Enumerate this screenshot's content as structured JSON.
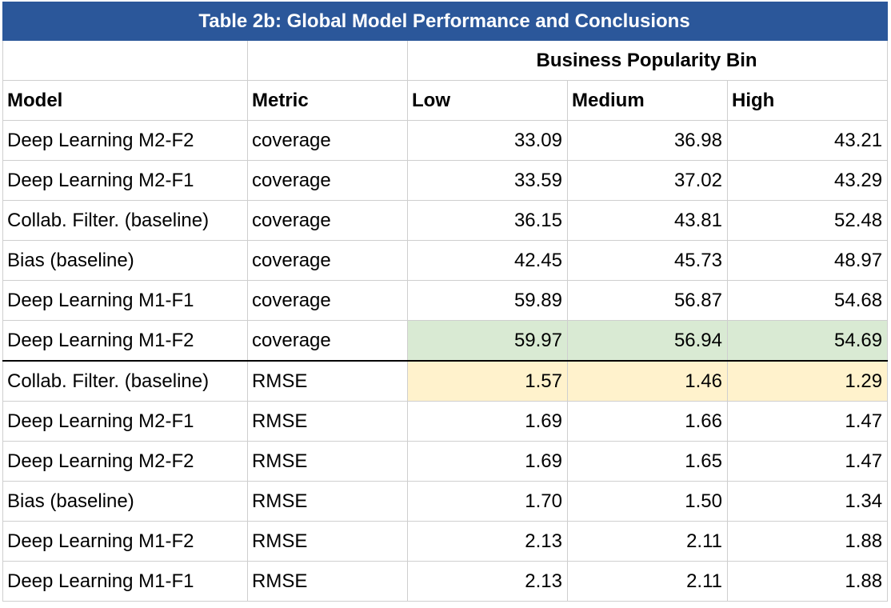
{
  "title": "Table 2b: Global Model Performance and Conclusions",
  "group_header": "Business Popularity Bin",
  "columns": {
    "model": "Model",
    "metric": "Metric",
    "low": "Low",
    "medium": "Medium",
    "high": "High"
  },
  "rows": [
    {
      "model": "Deep Learning M2-F2",
      "metric": "coverage",
      "low": "33.09",
      "medium": "36.98",
      "high": "43.21"
    },
    {
      "model": "Deep Learning M2-F1",
      "metric": "coverage",
      "low": "33.59",
      "medium": "37.02",
      "high": "43.29"
    },
    {
      "model": "Collab. Filter. (baseline)",
      "metric": "coverage",
      "low": "36.15",
      "medium": "43.81",
      "high": "52.48"
    },
    {
      "model": "Bias (baseline)",
      "metric": "coverage",
      "low": "42.45",
      "medium": "45.73",
      "high": "48.97"
    },
    {
      "model": "Deep Learning M1-F1",
      "metric": "coverage",
      "low": "59.89",
      "medium": "56.87",
      "high": "54.68"
    },
    {
      "model": "Deep Learning M1-F2",
      "metric": "coverage",
      "low": "59.97",
      "medium": "56.94",
      "high": "54.69"
    },
    {
      "model": "Collab. Filter. (baseline)",
      "metric": "RMSE",
      "low": "1.57",
      "medium": "1.46",
      "high": "1.29"
    },
    {
      "model": "Deep Learning M2-F1",
      "metric": "RMSE",
      "low": "1.69",
      "medium": "1.66",
      "high": "1.47"
    },
    {
      "model": "Deep Learning M2-F2",
      "metric": "RMSE",
      "low": "1.69",
      "medium": "1.65",
      "high": "1.47"
    },
    {
      "model": "Bias (baseline)",
      "metric": "RMSE",
      "low": "1.70",
      "medium": "1.50",
      "high": "1.34"
    },
    {
      "model": "Deep Learning M1-F2",
      "metric": "RMSE",
      "low": "2.13",
      "medium": "2.11",
      "high": "1.88"
    },
    {
      "model": "Deep Learning M1-F1",
      "metric": "RMSE",
      "low": "2.13",
      "medium": "2.11",
      "high": "1.88"
    }
  ],
  "highlights": {
    "best_coverage_row": 5,
    "best_rmse_row": 6,
    "coverage_color": "#d9ead3",
    "rmse_color": "#fff2cc",
    "title_color": "#2b579a"
  }
}
